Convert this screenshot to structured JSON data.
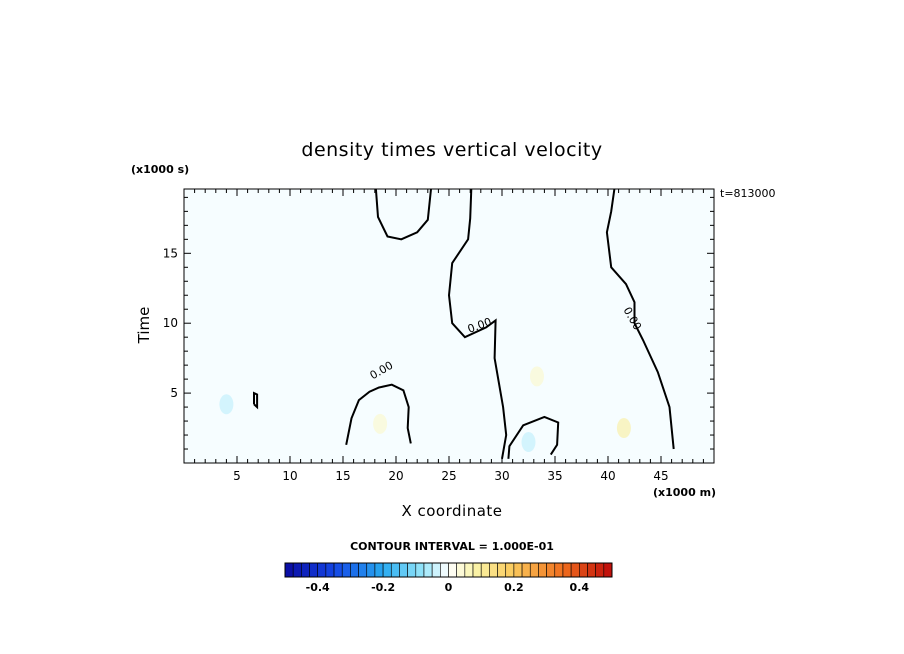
{
  "chart_data": {
    "type": "heatmap",
    "title": "density times vertical velocity",
    "xlabel": "X coordinate",
    "ylabel": "Time",
    "x_unit": "(x1000 m)",
    "y_unit": "(x1000 s)",
    "time_stamp": "t=813000",
    "contour_interval_text": "CONTOUR INTERVAL = 1.000E-01",
    "xlim": [
      0,
      50
    ],
    "ylim": [
      0,
      19.6
    ],
    "x_ticks": [
      5,
      10,
      15,
      20,
      25,
      30,
      35,
      40,
      45
    ],
    "y_ticks": [
      5,
      10,
      15
    ],
    "contour_label": "0.00",
    "colorbar": {
      "vmin": -0.5,
      "vmax": 0.5,
      "tick_values": [
        -0.4,
        -0.2,
        0,
        0.2,
        0.4
      ],
      "tick_labels": [
        "-0.4",
        "-0.2",
        "0",
        "0.2",
        "0.4"
      ],
      "n_levels": 40
    },
    "zero_contours": [
      {
        "name": "left bump",
        "points": [
          [
            15.3,
            1.3
          ],
          [
            15.8,
            3.2
          ],
          [
            16.5,
            4.5
          ],
          [
            17.5,
            5.1
          ],
          [
            18.4,
            5.4
          ],
          [
            19.6,
            5.6
          ],
          [
            20.7,
            5.2
          ],
          [
            21.2,
            4.0
          ],
          [
            21.1,
            2.5
          ],
          [
            21.4,
            1.4
          ]
        ]
      },
      {
        "name": "top-left lobe",
        "points": [
          [
            18.1,
            19.6
          ],
          [
            18.3,
            17.6
          ],
          [
            19.2,
            16.2
          ],
          [
            20.5,
            16.0
          ],
          [
            22.0,
            16.5
          ],
          [
            23.0,
            17.4
          ],
          [
            23.3,
            19.6
          ]
        ]
      },
      {
        "name": "center boundary",
        "points": [
          [
            27.1,
            19.6
          ],
          [
            27.0,
            17.5
          ],
          [
            26.8,
            16.0
          ],
          [
            25.3,
            14.3
          ],
          [
            25.0,
            12.0
          ],
          [
            25.3,
            10.0
          ],
          [
            26.5,
            9.0
          ],
          [
            28.5,
            9.7
          ],
          [
            29.4,
            10.2
          ],
          [
            29.3,
            7.5
          ],
          [
            30.1,
            4.0
          ],
          [
            30.4,
            2.0
          ],
          [
            30.0,
            0.3
          ]
        ]
      },
      {
        "name": "right boundary",
        "points": [
          [
            40.6,
            19.6
          ],
          [
            40.3,
            18.0
          ],
          [
            39.9,
            16.5
          ],
          [
            40.3,
            14.0
          ],
          [
            41.7,
            12.8
          ],
          [
            42.5,
            11.5
          ],
          [
            42.5,
            10.0
          ],
          [
            43.3,
            8.8
          ],
          [
            44.7,
            6.5
          ],
          [
            45.8,
            4.0
          ],
          [
            46.2,
            1.0
          ]
        ]
      },
      {
        "name": "small loop",
        "points": [
          [
            6.6,
            4.2
          ],
          [
            6.9,
            4.0
          ],
          [
            6.9,
            4.9
          ],
          [
            6.6,
            5.0
          ],
          [
            6.6,
            4.2
          ]
        ]
      },
      {
        "name": "mid bump",
        "points": [
          [
            30.6,
            0.3
          ],
          [
            30.7,
            1.2
          ],
          [
            32.0,
            2.7
          ],
          [
            34.0,
            3.3
          ],
          [
            35.3,
            2.9
          ],
          [
            35.2,
            1.3
          ],
          [
            34.6,
            0.6
          ]
        ]
      }
    ],
    "colored_patches": [
      {
        "x": 4.0,
        "y": 4.2,
        "value": -0.05
      },
      {
        "x": 33.3,
        "y": 6.2,
        "value": 0.05
      },
      {
        "x": 41.5,
        "y": 2.5,
        "value": 0.1
      },
      {
        "x": 18.5,
        "y": 2.8,
        "value": 0.05
      },
      {
        "x": 32.5,
        "y": 1.5,
        "value": -0.05
      }
    ]
  }
}
